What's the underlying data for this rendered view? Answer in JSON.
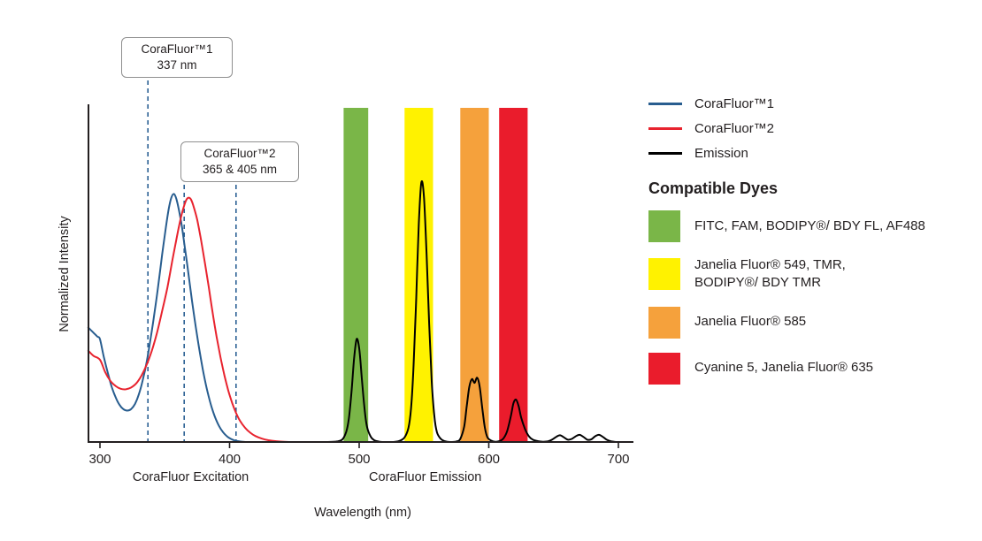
{
  "chart_data": {
    "type": "line",
    "title": "",
    "xlabel": "Wavelength (nm)",
    "ylabel": "Normalized Intensity",
    "xlim": [
      291,
      716
    ],
    "ylim": [
      0,
      1.3
    ],
    "x_ticks": [
      300,
      400,
      500,
      600,
      700
    ],
    "grid": false,
    "legend_position": "right",
    "x_section_labels": [
      {
        "text": "CoraFluor Excitation",
        "nm": 370
      },
      {
        "text": "CoraFluor Emission",
        "nm": 551
      }
    ],
    "bands": [
      {
        "dye_group": "FITC, FAM, BODIPY®/ BDY FL, AF488",
        "x0": 488,
        "x1": 507,
        "color": "#7AB648"
      },
      {
        "dye_group": "Janelia Fluor® 549, TMR, BODIPY®/ BDY TMR",
        "x0": 535,
        "x1": 557,
        "color": "#FFF200"
      },
      {
        "dye_group": "Janelia Fluor® 585",
        "x0": 578,
        "x1": 600,
        "color": "#F5A13C"
      },
      {
        "dye_group": "Cyanine 5, Janelia Fluor® 635",
        "x0": 608,
        "x1": 630,
        "color": "#EA1C2C"
      }
    ],
    "dashed_markers": {
      "color": "#2B6094",
      "lines": [
        {
          "nm": 337,
          "annotation": 0
        },
        {
          "nm": 365,
          "annotation": 1
        },
        {
          "nm": 405,
          "annotation": 1
        }
      ]
    },
    "series": [
      {
        "name": "CoraFluor™1",
        "color": "#285D8F",
        "points": [
          [
            291,
            0.445
          ],
          [
            295,
            0.425
          ],
          [
            298,
            0.41
          ],
          [
            300,
            0.4
          ],
          [
            303,
            0.33
          ],
          [
            306,
            0.27
          ],
          [
            309,
            0.215
          ],
          [
            312,
            0.175
          ],
          [
            315,
            0.145
          ],
          [
            318,
            0.128
          ],
          [
            321,
            0.122
          ],
          [
            324,
            0.128
          ],
          [
            327,
            0.148
          ],
          [
            330,
            0.185
          ],
          [
            333,
            0.24
          ],
          [
            336,
            0.31
          ],
          [
            339,
            0.4
          ],
          [
            342,
            0.5
          ],
          [
            345,
            0.61
          ],
          [
            348,
            0.73
          ],
          [
            351,
            0.84
          ],
          [
            353,
            0.905
          ],
          [
            355,
            0.95
          ],
          [
            357,
            0.965
          ],
          [
            359,
            0.945
          ],
          [
            361,
            0.9
          ],
          [
            363,
            0.845
          ],
          [
            365,
            0.775
          ],
          [
            368,
            0.665
          ],
          [
            371,
            0.55
          ],
          [
            374,
            0.445
          ],
          [
            377,
            0.35
          ],
          [
            380,
            0.265
          ],
          [
            383,
            0.195
          ],
          [
            386,
            0.138
          ],
          [
            389,
            0.094
          ],
          [
            392,
            0.061
          ],
          [
            395,
            0.038
          ],
          [
            398,
            0.022
          ],
          [
            401,
            0.012
          ],
          [
            404,
            0.006
          ],
          [
            408,
            0.002
          ],
          [
            412,
            0
          ]
        ]
      },
      {
        "name": "CoraFluor™2",
        "color": "#E8232E",
        "points": [
          [
            291,
            0.355
          ],
          [
            295,
            0.335
          ],
          [
            300,
            0.32
          ],
          [
            304,
            0.272
          ],
          [
            308,
            0.238
          ],
          [
            312,
            0.218
          ],
          [
            316,
            0.207
          ],
          [
            320,
            0.205
          ],
          [
            324,
            0.212
          ],
          [
            328,
            0.228
          ],
          [
            332,
            0.258
          ],
          [
            336,
            0.3
          ],
          [
            340,
            0.355
          ],
          [
            344,
            0.425
          ],
          [
            348,
            0.51
          ],
          [
            352,
            0.6
          ],
          [
            356,
            0.71
          ],
          [
            360,
            0.815
          ],
          [
            363,
            0.885
          ],
          [
            366,
            0.935
          ],
          [
            368,
            0.95
          ],
          [
            370,
            0.945
          ],
          [
            372,
            0.92
          ],
          [
            375,
            0.865
          ],
          [
            378,
            0.785
          ],
          [
            381,
            0.695
          ],
          [
            384,
            0.6
          ],
          [
            387,
            0.5
          ],
          [
            390,
            0.41
          ],
          [
            393,
            0.33
          ],
          [
            396,
            0.26
          ],
          [
            399,
            0.2
          ],
          [
            402,
            0.152
          ],
          [
            405,
            0.113
          ],
          [
            408,
            0.083
          ],
          [
            412,
            0.055
          ],
          [
            416,
            0.036
          ],
          [
            420,
            0.023
          ],
          [
            425,
            0.013
          ],
          [
            430,
            0.007
          ],
          [
            436,
            0.003
          ],
          [
            442,
            0.001
          ],
          [
            450,
            0
          ]
        ]
      },
      {
        "name": "Emission",
        "color": "#000000",
        "points": [
          [
            455,
            0
          ],
          [
            475,
            0
          ],
          [
            483,
            0.002
          ],
          [
            487,
            0.01
          ],
          [
            490,
            0.04
          ],
          [
            492,
            0.09
          ],
          [
            494,
            0.19
          ],
          [
            496,
            0.32
          ],
          [
            498,
            0.4
          ],
          [
            500,
            0.365
          ],
          [
            502,
            0.25
          ],
          [
            504,
            0.135
          ],
          [
            506,
            0.06
          ],
          [
            509,
            0.02
          ],
          [
            512,
            0.006
          ],
          [
            516,
            0.001
          ],
          [
            520,
            0
          ],
          [
            526,
            0
          ],
          [
            531,
            0.004
          ],
          [
            535,
            0.018
          ],
          [
            538,
            0.055
          ],
          [
            540,
            0.13
          ],
          [
            542,
            0.3
          ],
          [
            544,
            0.56
          ],
          [
            546,
            0.85
          ],
          [
            548,
            1.01
          ],
          [
            550,
            0.95
          ],
          [
            552,
            0.73
          ],
          [
            554,
            0.46
          ],
          [
            556,
            0.235
          ],
          [
            558,
            0.1
          ],
          [
            560,
            0.038
          ],
          [
            563,
            0.012
          ],
          [
            566,
            0.003
          ],
          [
            570,
            0
          ],
          [
            575,
            0.002
          ],
          [
            578,
            0.012
          ],
          [
            581,
            0.06
          ],
          [
            583,
            0.14
          ],
          [
            585,
            0.215
          ],
          [
            587,
            0.245
          ],
          [
            589,
            0.23
          ],
          [
            591,
            0.25
          ],
          [
            593,
            0.215
          ],
          [
            595,
            0.13
          ],
          [
            597,
            0.055
          ],
          [
            599,
            0.018
          ],
          [
            602,
            0.005
          ],
          [
            605,
            0.001
          ],
          [
            608,
            0.003
          ],
          [
            611,
            0.012
          ],
          [
            614,
            0.04
          ],
          [
            617,
            0.1
          ],
          [
            619,
            0.15
          ],
          [
            621,
            0.165
          ],
          [
            623,
            0.14
          ],
          [
            625,
            0.095
          ],
          [
            628,
            0.05
          ],
          [
            631,
            0.022
          ],
          [
            634,
            0.009
          ],
          [
            638,
            0.003
          ],
          [
            642,
            0.001
          ],
          [
            646,
            0.003
          ],
          [
            649,
            0.01
          ],
          [
            652,
            0.02
          ],
          [
            655,
            0.026
          ],
          [
            658,
            0.018
          ],
          [
            661,
            0.009
          ],
          [
            664,
            0.012
          ],
          [
            667,
            0.022
          ],
          [
            670,
            0.028
          ],
          [
            673,
            0.02
          ],
          [
            676,
            0.009
          ],
          [
            679,
            0.01
          ],
          [
            682,
            0.022
          ],
          [
            685,
            0.028
          ],
          [
            688,
            0.02
          ],
          [
            691,
            0.009
          ],
          [
            694,
            0.003
          ],
          [
            698,
            0
          ]
        ]
      }
    ]
  },
  "annotations": [
    {
      "line1": "CoraFluor™1",
      "line2": "337 nm"
    },
    {
      "line1": "CoraFluor™2",
      "line2": "365 & 405 nm"
    }
  ],
  "legend": {
    "series": [
      {
        "label": "CoraFluor™1",
        "color": "#285D8F"
      },
      {
        "label": "CoraFluor™2",
        "color": "#E8232E"
      },
      {
        "label": "Emission",
        "color": "#000000"
      }
    ],
    "heading": "Compatible Dyes",
    "dyes": [
      {
        "label": "FITC, FAM, BODIPY®/ BDY FL, AF488",
        "color": "#7AB648"
      },
      {
        "label": "Janelia Fluor® 549, TMR,\nBODIPY®/ BDY TMR",
        "color": "#FFF200"
      },
      {
        "label": "Janelia Fluor® 585",
        "color": "#F5A13C"
      },
      {
        "label": "Cyanine 5, Janelia Fluor® 635",
        "color": "#EA1C2C"
      }
    ]
  }
}
